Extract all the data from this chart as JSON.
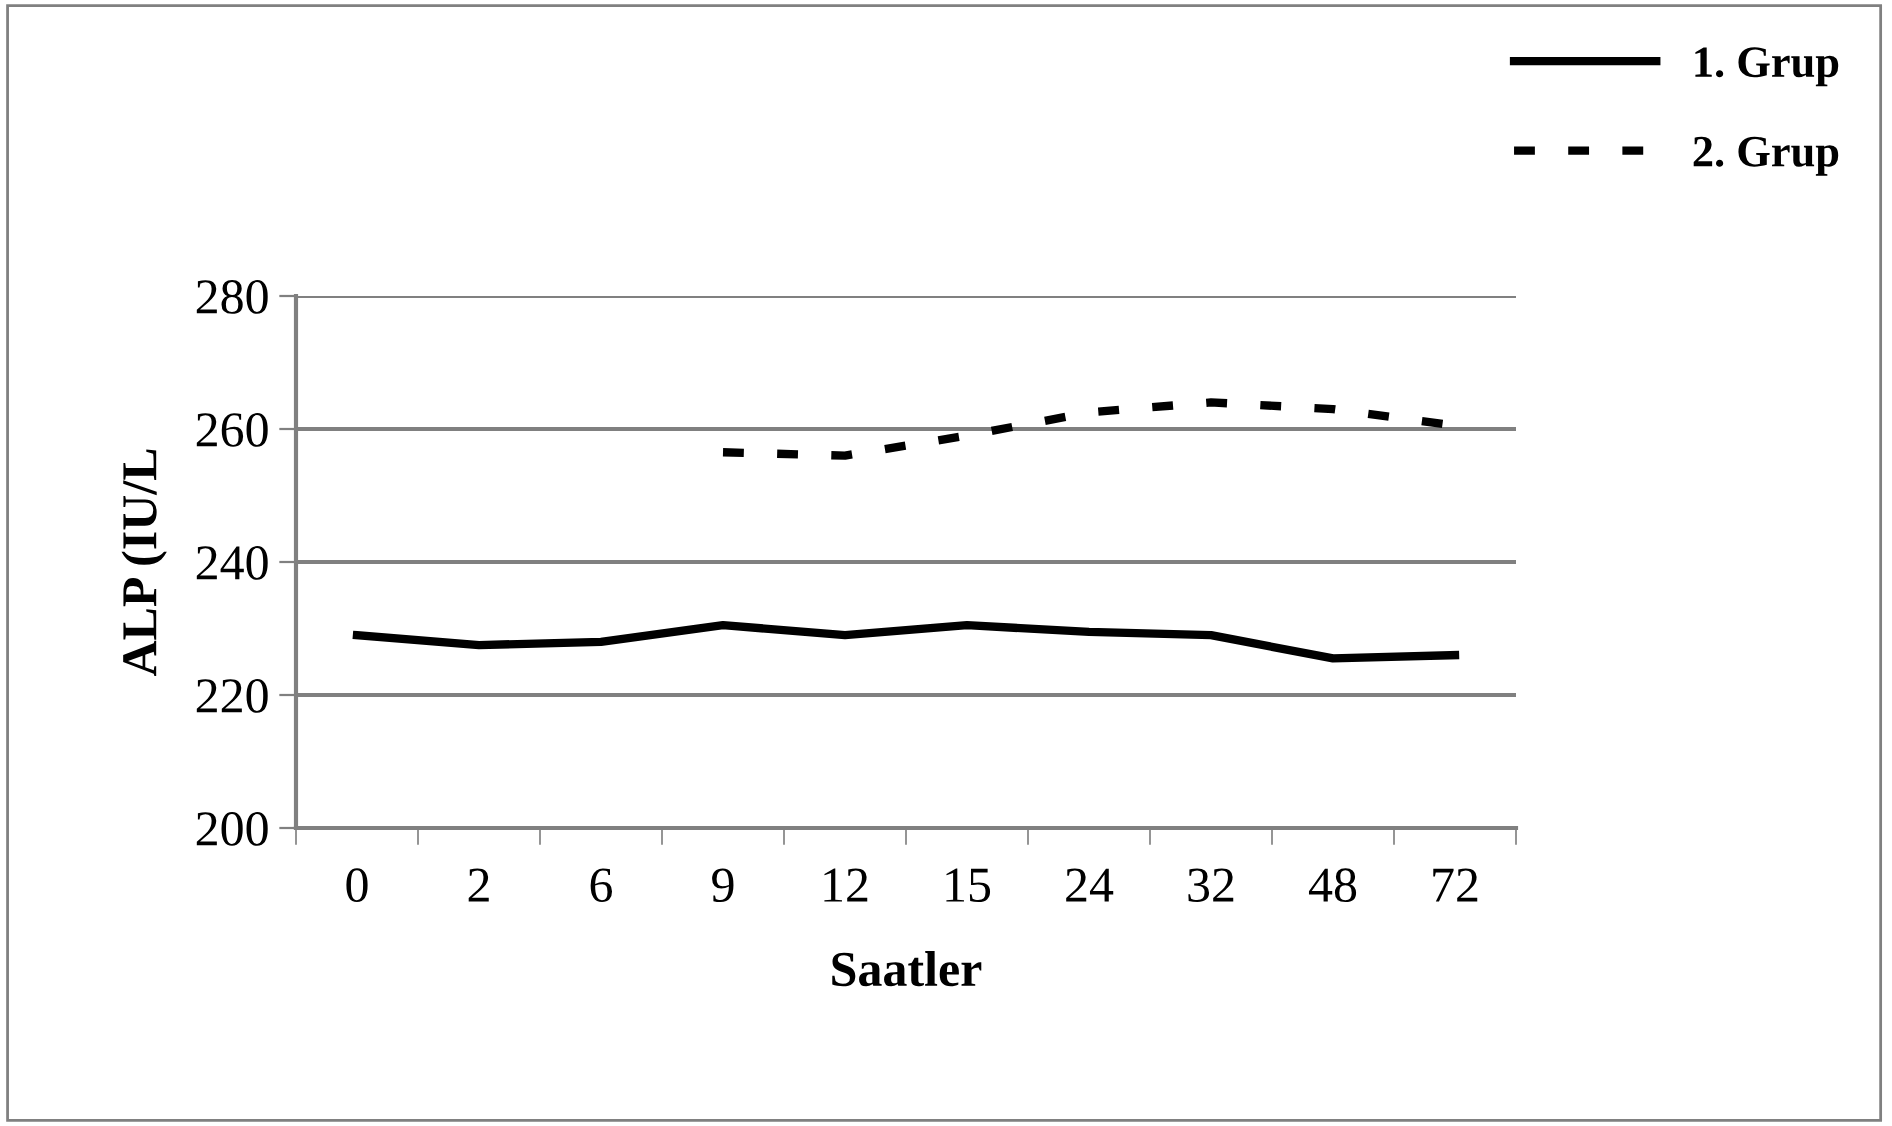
{
  "chart_data": {
    "type": "line",
    "xlabel": "Saatler",
    "ylabel": "ALP (IU/L",
    "categories": [
      "0",
      "2",
      "6",
      "9",
      "12",
      "15",
      "24",
      "32",
      "48",
      "72"
    ],
    "series": [
      {
        "name": "1. Grup",
        "color": "#000000",
        "line_style": "solid",
        "values": [
          229,
          227.5,
          228,
          230.5,
          229,
          230.5,
          229.5,
          229,
          225.5,
          226
        ]
      },
      {
        "name": "2. Grup",
        "color": "#000000",
        "line_style": "dashed",
        "values": [
          null,
          null,
          null,
          256.5,
          256,
          259,
          262.5,
          264,
          263,
          260.5
        ]
      }
    ],
    "ylim": [
      200,
      280
    ],
    "yticks": [
      200,
      220,
      240,
      260,
      280
    ],
    "grid": "y",
    "legend": "top right",
    "marker": "none"
  }
}
